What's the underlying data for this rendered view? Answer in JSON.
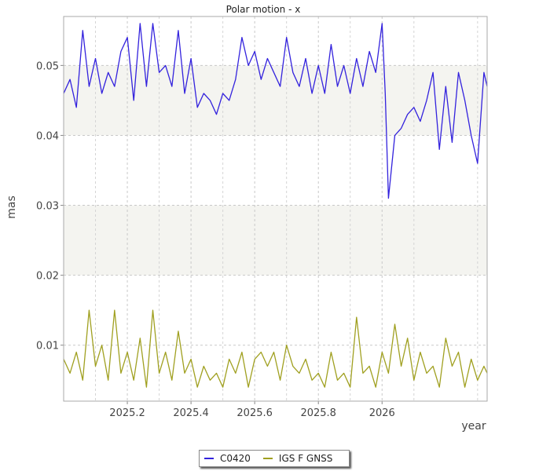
{
  "chart_data": {
    "type": "line",
    "title": "Polar motion - x",
    "xlabel": "year",
    "ylabel": "mas",
    "xlim": [
      2025.0,
      2026.33
    ],
    "ylim": [
      0.002,
      0.057
    ],
    "x_ticks": [
      2025.2,
      2025.4,
      2025.6,
      2025.8,
      2026.0
    ],
    "x_tick_labels": [
      "2025.2",
      "2025.4",
      "2025.6",
      "2025.8",
      "2026"
    ],
    "y_ticks": [
      0.01,
      0.02,
      0.03,
      0.04,
      0.05
    ],
    "y_tick_labels": [
      "0.01",
      "0.02",
      "0.03",
      "0.04",
      "0.05"
    ],
    "bands": [
      [
        0.04,
        0.05
      ],
      [
        0.02,
        0.03
      ]
    ],
    "grid": true,
    "legend_position": "bottom-center",
    "series": [
      {
        "name": "C0420",
        "color": "#3322dd",
        "x": [
          2025.0,
          2025.02,
          2025.04,
          2025.06,
          2025.08,
          2025.1,
          2025.12,
          2025.14,
          2025.16,
          2025.18,
          2025.2,
          2025.22,
          2025.24,
          2025.26,
          2025.28,
          2025.3,
          2025.32,
          2025.34,
          2025.36,
          2025.38,
          2025.4,
          2025.42,
          2025.44,
          2025.46,
          2025.48,
          2025.5,
          2025.52,
          2025.54,
          2025.56,
          2025.58,
          2025.6,
          2025.62,
          2025.64,
          2025.66,
          2025.68,
          2025.7,
          2025.72,
          2025.74,
          2025.76,
          2025.78,
          2025.8,
          2025.82,
          2025.84,
          2025.86,
          2025.88,
          2025.9,
          2025.92,
          2025.94,
          2025.96,
          2025.98,
          2026.0,
          2026.01,
          2026.02,
          2026.04,
          2026.06,
          2026.08,
          2026.1,
          2026.12,
          2026.14,
          2026.16,
          2026.18,
          2026.2,
          2026.22,
          2026.24,
          2026.26,
          2026.28,
          2026.3,
          2026.32,
          2026.33
        ],
        "values": [
          0.046,
          0.048,
          0.044,
          0.055,
          0.047,
          0.051,
          0.046,
          0.049,
          0.047,
          0.052,
          0.054,
          0.045,
          0.056,
          0.047,
          0.056,
          0.049,
          0.05,
          0.047,
          0.055,
          0.046,
          0.051,
          0.044,
          0.046,
          0.045,
          0.043,
          0.046,
          0.045,
          0.048,
          0.054,
          0.05,
          0.052,
          0.048,
          0.051,
          0.049,
          0.047,
          0.054,
          0.049,
          0.047,
          0.051,
          0.046,
          0.05,
          0.046,
          0.053,
          0.047,
          0.05,
          0.046,
          0.051,
          0.047,
          0.052,
          0.049,
          0.056,
          0.046,
          0.031,
          0.04,
          0.041,
          0.043,
          0.044,
          0.042,
          0.045,
          0.049,
          0.038,
          0.047,
          0.039,
          0.049,
          0.045,
          0.04,
          0.036,
          0.049,
          0.047
        ]
      },
      {
        "name": "IGS F GNSS",
        "color": "#a0a020",
        "x": [
          2025.0,
          2025.02,
          2025.04,
          2025.06,
          2025.08,
          2025.1,
          2025.12,
          2025.14,
          2025.16,
          2025.18,
          2025.2,
          2025.22,
          2025.24,
          2025.26,
          2025.28,
          2025.3,
          2025.32,
          2025.34,
          2025.36,
          2025.38,
          2025.4,
          2025.42,
          2025.44,
          2025.46,
          2025.48,
          2025.5,
          2025.52,
          2025.54,
          2025.56,
          2025.58,
          2025.6,
          2025.62,
          2025.64,
          2025.66,
          2025.68,
          2025.7,
          2025.72,
          2025.74,
          2025.76,
          2025.78,
          2025.8,
          2025.82,
          2025.84,
          2025.86,
          2025.88,
          2025.9,
          2025.92,
          2025.94,
          2025.96,
          2025.98,
          2026.0,
          2026.02,
          2026.04,
          2026.06,
          2026.08,
          2026.1,
          2026.12,
          2026.14,
          2026.16,
          2026.18,
          2026.2,
          2026.22,
          2026.24,
          2026.26,
          2026.28,
          2026.3,
          2026.32,
          2026.33
        ],
        "values": [
          0.008,
          0.006,
          0.009,
          0.005,
          0.015,
          0.007,
          0.01,
          0.005,
          0.015,
          0.006,
          0.009,
          0.005,
          0.011,
          0.004,
          0.015,
          0.006,
          0.009,
          0.005,
          0.012,
          0.006,
          0.008,
          0.004,
          0.007,
          0.005,
          0.006,
          0.004,
          0.008,
          0.006,
          0.009,
          0.004,
          0.008,
          0.009,
          0.007,
          0.009,
          0.005,
          0.01,
          0.007,
          0.006,
          0.008,
          0.005,
          0.006,
          0.004,
          0.009,
          0.005,
          0.006,
          0.004,
          0.014,
          0.006,
          0.007,
          0.004,
          0.009,
          0.006,
          0.013,
          0.007,
          0.011,
          0.005,
          0.009,
          0.006,
          0.007,
          0.004,
          0.011,
          0.007,
          0.009,
          0.004,
          0.008,
          0.005,
          0.007,
          0.006
        ]
      }
    ]
  }
}
